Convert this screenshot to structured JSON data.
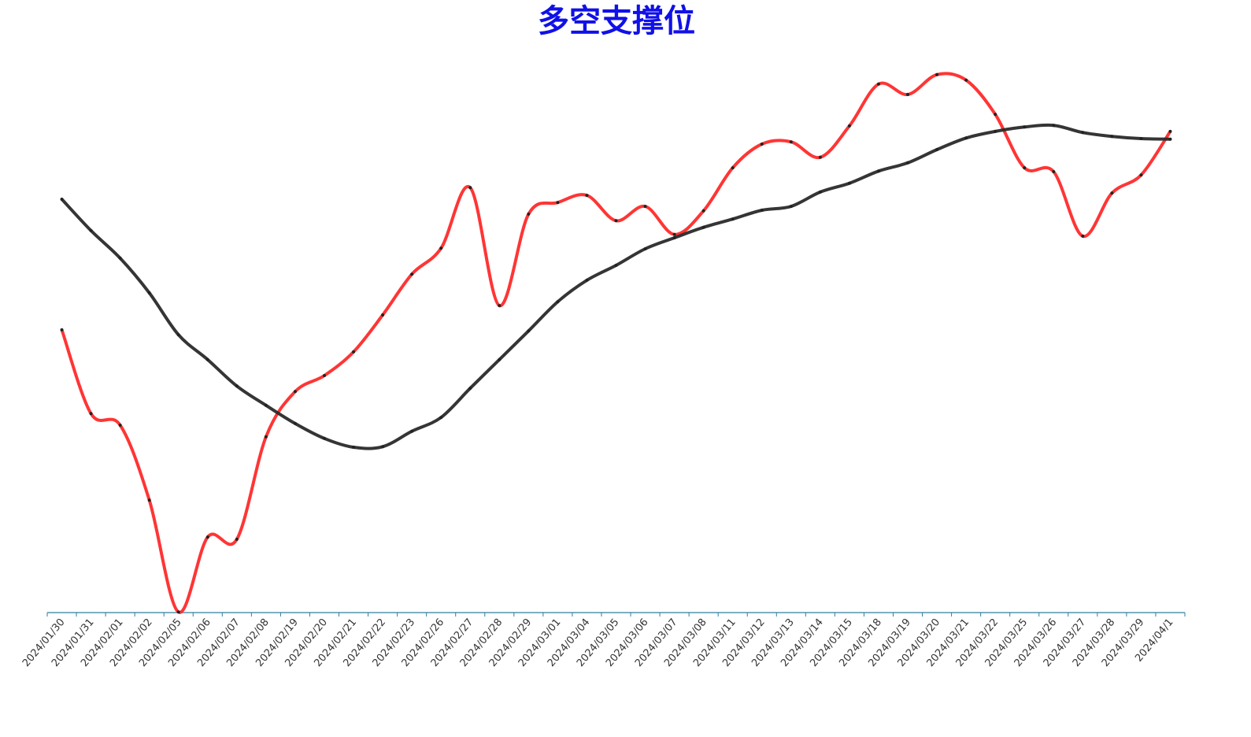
{
  "chart_data": {
    "type": "line",
    "title": "多空支撑位",
    "categories": [
      "2024/01/30",
      "2024/01/31",
      "2024/02/01",
      "2024/02/02",
      "2024/02/05",
      "2024/02/06",
      "2024/02/07",
      "2024/02/08",
      "2024/02/19",
      "2024/02/20",
      "2024/02/21",
      "2024/02/22",
      "2024/02/23",
      "2024/02/26",
      "2024/02/27",
      "2024/02/28",
      "2024/02/29",
      "2024/03/01",
      "2024/03/04",
      "2024/03/05",
      "2024/03/06",
      "2024/03/07",
      "2024/03/08",
      "2024/03/11",
      "2024/03/12",
      "2024/03/13",
      "2024/03/14",
      "2024/03/15",
      "2024/03/18",
      "2024/03/19",
      "2024/03/20",
      "2024/03/21",
      "2024/03/22",
      "2024/03/25",
      "2024/03/26",
      "2024/03/27",
      "2024/03/28",
      "2024/03/29",
      "2024/04/1"
    ],
    "series": [
      {
        "color": "#ff2a2a",
        "values": [
          51.3,
          36.1,
          34.0,
          20.4,
          0.1,
          13.7,
          13.3,
          31.9,
          40.1,
          43.0,
          47.3,
          54.0,
          61.4,
          66.1,
          77.1,
          55.7,
          72.3,
          74.4,
          75.7,
          71.1,
          73.7,
          68.6,
          72.9,
          80.7,
          85.0,
          85.4,
          82.6,
          88.3,
          95.9,
          94.0,
          97.6,
          96.6,
          90.4,
          80.7,
          80.0,
          68.3,
          76.1,
          79.4,
          87.3
        ]
      },
      {
        "color": "#2a2a2a",
        "values": [
          75.0,
          69.3,
          64.3,
          58.0,
          50.4,
          45.9,
          41.1,
          37.6,
          34.3,
          31.6,
          30.0,
          30.1,
          32.9,
          35.4,
          40.7,
          45.9,
          51.1,
          56.4,
          60.3,
          63.0,
          66.0,
          68.0,
          69.9,
          71.4,
          73.0,
          73.7,
          76.3,
          77.9,
          80.1,
          81.6,
          84.0,
          86.1,
          87.3,
          88.1,
          88.4,
          87.1,
          86.4,
          86.0,
          85.9
        ]
      }
    ],
    "ylim": [
      0,
      100
    ]
  }
}
